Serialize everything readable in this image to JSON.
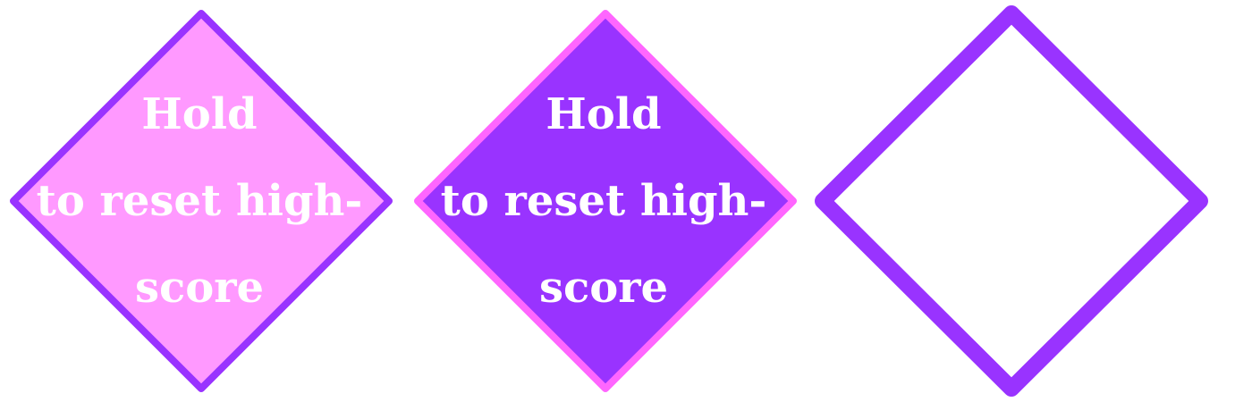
{
  "buttons": [
    {
      "id": "reset-highscore-button-normal",
      "state": "normal",
      "fill": "#ff99ff",
      "stroke": "#9933ff",
      "text_lines": [
        "Hold",
        "to reset high-",
        "score"
      ]
    },
    {
      "id": "reset-highscore-button-pressed",
      "state": "pressed",
      "fill": "#9933ff",
      "stroke": "#ff66ff",
      "text_lines": [
        "Hold",
        "to reset high-",
        "score"
      ]
    },
    {
      "id": "reset-highscore-button-outline",
      "state": "outline",
      "fill": "#ffffff",
      "stroke": "#9933ff",
      "text_lines": []
    }
  ],
  "text_color": "#ffffff"
}
